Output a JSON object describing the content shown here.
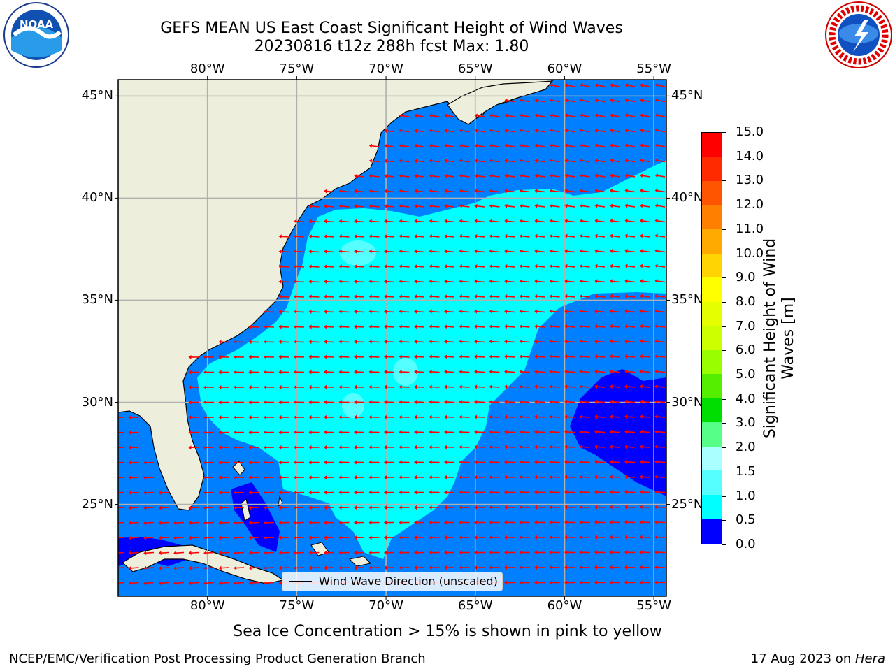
{
  "header": {
    "title_line1": "GEFS MEAN US East Coast Significant Height of Wind Waves",
    "title_line2": "20230816 t12z 288h fcst   Max: 1.80"
  },
  "logos": {
    "left": {
      "name": "noaa-logo",
      "text": "NOAA"
    },
    "right": {
      "name": "national-weather-service-logo",
      "text": "NATIONAL WEATHER SERVICE"
    }
  },
  "axes": {
    "lon_ticks": [
      "80°W",
      "75°W",
      "70°W",
      "65°W",
      "60°W",
      "55°W"
    ],
    "lat_ticks": [
      "45°N",
      "40°N",
      "35°N",
      "30°N",
      "25°N"
    ],
    "lon_range": [
      -85,
      -54.3
    ],
    "lat_range": [
      20.5,
      45.8
    ],
    "grid": true
  },
  "legend": {
    "label": "Wind Wave Direction (unscaled)"
  },
  "colorbar": {
    "label": "Significant Height of Wind Waves [m]",
    "label_line1": "Significant Height of Wind",
    "label_line2": "Waves [m]",
    "ticks": [
      "15.0",
      "14.0",
      "13.0",
      "12.0",
      "11.0",
      "10.0",
      "9.0",
      "8.0",
      "7.0",
      "6.0",
      "5.0",
      "4.0",
      "3.0",
      "2.0",
      "1.5",
      "1.0",
      "0.5",
      "0.0"
    ],
    "colors": [
      "#ff0000",
      "#ff2a00",
      "#ff5500",
      "#ff8000",
      "#ffaa00",
      "#ffd400",
      "#ffff00",
      "#e6ff00",
      "#ccff00",
      "#99ff00",
      "#55ee00",
      "#00dd00",
      "#55ff88",
      "#aaffff",
      "#55ffff",
      "#00ffff",
      "#0080ff",
      "#0000ff"
    ]
  },
  "notes": {
    "sea_ice": "Sea Ice Concentration > 15% is shown in pink to yellow"
  },
  "footer": {
    "left": "NCEP/EMC/Verification Post Processing Product Generation Branch",
    "right_date": "17 Aug 2023 on ",
    "right_host": "Hera"
  },
  "colors": {
    "land": "#eeeedd",
    "wave_lt_0_5": "#0000ff",
    "wave_0_5_1_0": "#0080ff",
    "wave_1_0_1_5": "#00ffff",
    "wave_1_5_2_0": "#55ffff",
    "arrow": "#ff0000",
    "grid": "#b0b0b0"
  }
}
